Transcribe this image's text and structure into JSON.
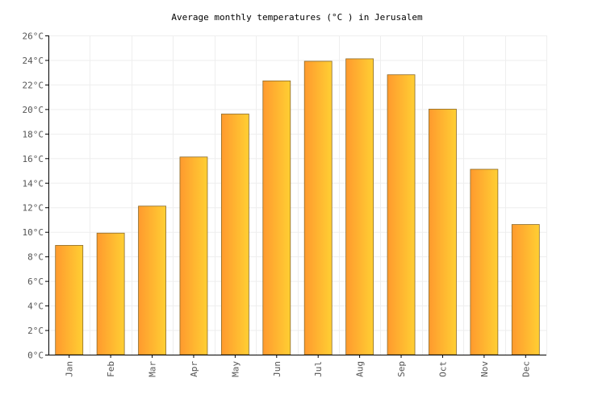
{
  "chart_data": {
    "type": "bar",
    "title": "Average monthly temperatures (°C ) in Jerusalem",
    "xlabel": "",
    "ylabel": "",
    "categories": [
      "Jan",
      "Feb",
      "Mar",
      "Apr",
      "May",
      "Jun",
      "Jul",
      "Aug",
      "Sep",
      "Oct",
      "Nov",
      "Dec"
    ],
    "values": [
      8.9,
      9.9,
      12.1,
      16.1,
      19.6,
      22.3,
      23.9,
      24.1,
      22.8,
      20.0,
      15.1,
      10.6
    ],
    "ylim": [
      0,
      26
    ],
    "yticks": [
      0,
      2,
      4,
      6,
      8,
      10,
      12,
      14,
      16,
      18,
      20,
      22,
      24,
      26
    ],
    "ytick_labels": [
      "0°C",
      "2°C",
      "4°C",
      "6°C",
      "8°C",
      "10°C",
      "12°C",
      "14°C",
      "16°C",
      "18°C",
      "20°C",
      "22°C",
      "24°C",
      "26°C"
    ],
    "grid": true,
    "colors": {
      "bar_left": "#ff9a2e",
      "bar_right": "#ffcf33",
      "bar_border": "#8a6a2a"
    }
  }
}
